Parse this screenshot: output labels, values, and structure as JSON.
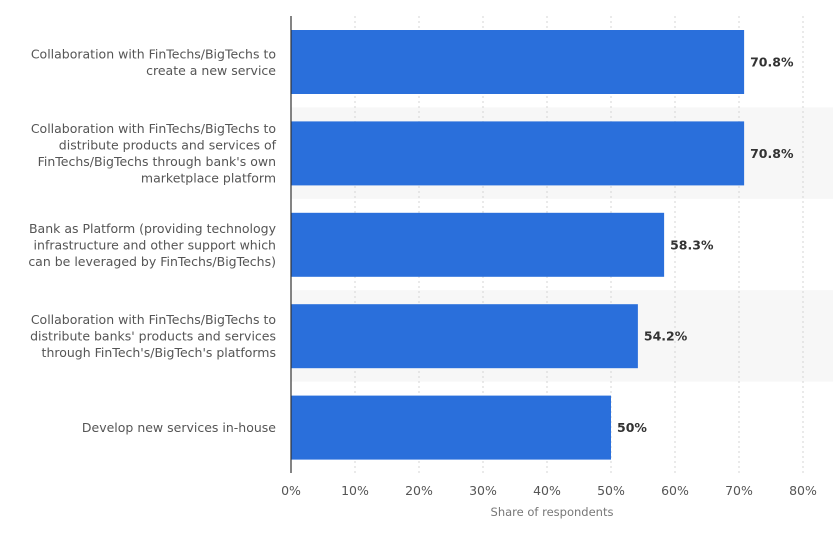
{
  "chart_data": {
    "type": "bar",
    "orientation": "horizontal",
    "categories": [
      [
        "Collaboration with FinTechs/BigTechs to",
        "create a new service"
      ],
      [
        "Collaboration with FinTechs/BigTechs to",
        "distribute products and services of",
        "FinTechs/BigTechs through bank's own",
        "marketplace platform"
      ],
      [
        "Bank as Platform (providing technology",
        "infrastructure and other support which",
        "can be leveraged by FinTechs/BigTechs)"
      ],
      [
        "Collaboration with FinTechs/BigTechs to",
        "distribute banks' products and services",
        "through FinTech's/BigTech's platforms"
      ],
      [
        "Develop new services in-house"
      ]
    ],
    "values": [
      70.8,
      70.8,
      58.3,
      54.2,
      50
    ],
    "value_labels": [
      "70.8%",
      "70.8%",
      "58.3%",
      "54.2%",
      "50%"
    ],
    "xlim": [
      0,
      80
    ],
    "x_ticks": [
      0,
      10,
      20,
      30,
      40,
      50,
      60,
      70,
      80
    ],
    "x_tick_labels": [
      "0%",
      "10%",
      "20%",
      "30%",
      "40%",
      "50%",
      "60%",
      "70%",
      "80%"
    ],
    "xlabel": "Share of respondents",
    "grid": true,
    "bar_color": "#2a6fdb",
    "band_color": "#f7f7f7",
    "grid_color": "#d4d4d4"
  }
}
